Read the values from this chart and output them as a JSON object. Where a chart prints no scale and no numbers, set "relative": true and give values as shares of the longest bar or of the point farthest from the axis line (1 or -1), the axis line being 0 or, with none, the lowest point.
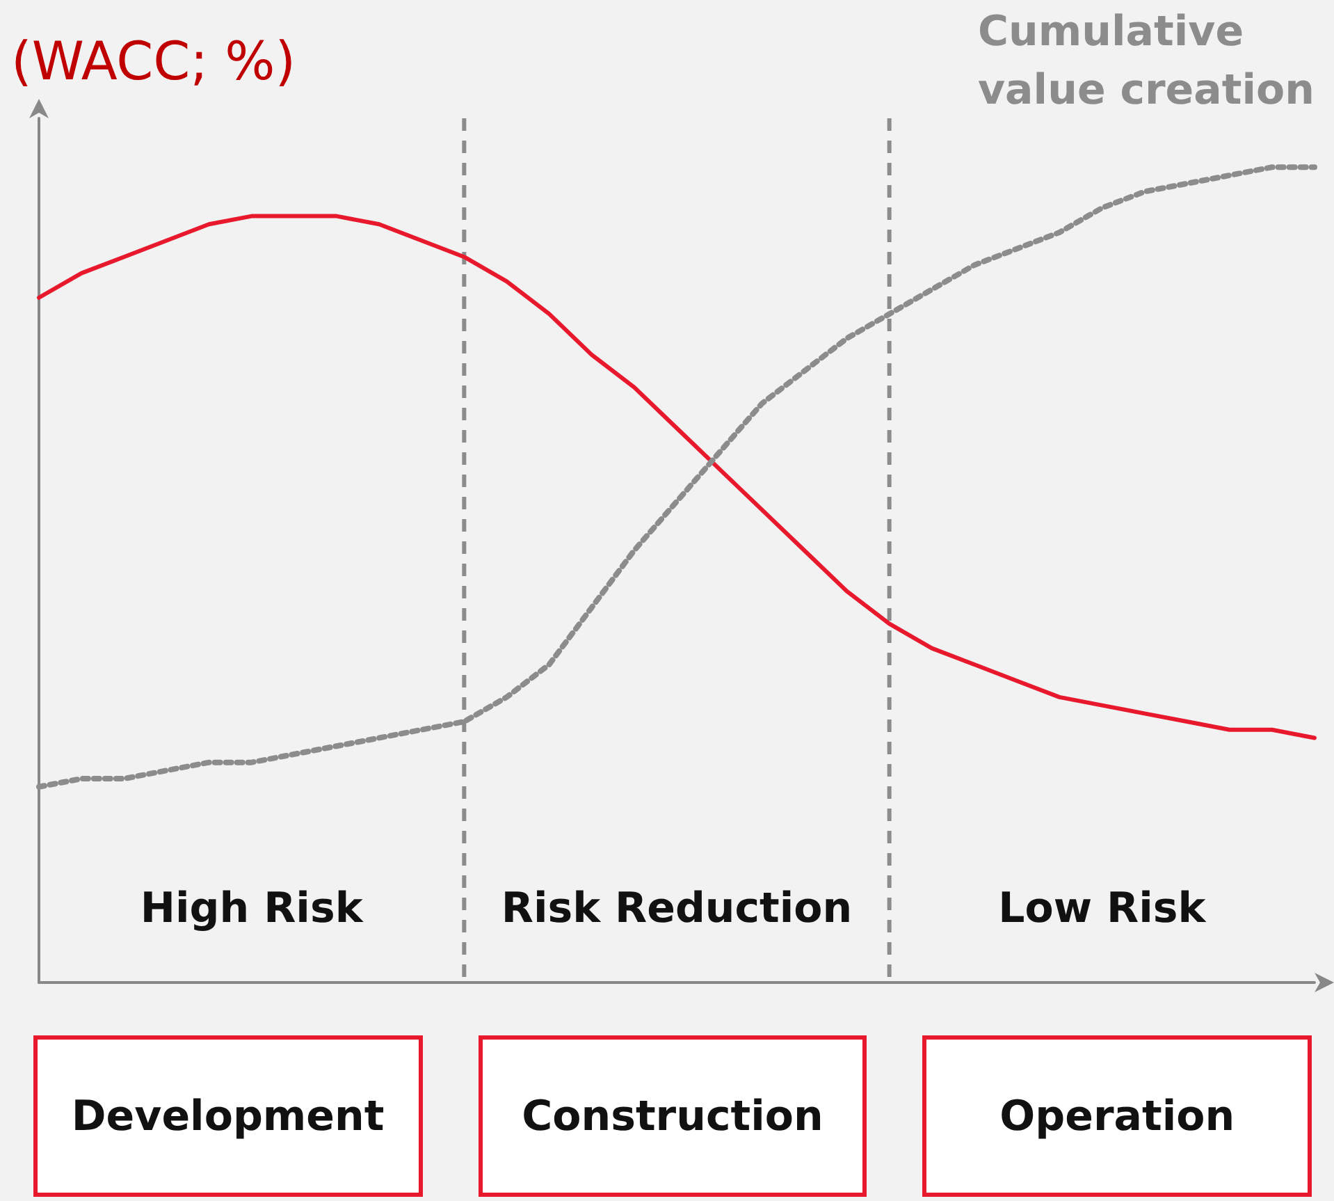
{
  "chart_data": {
    "type": "line",
    "relative": true,
    "ylabel": "(WACC; %)",
    "categories": [
      null,
      null,
      null,
      null,
      null,
      null,
      null,
      null,
      null,
      null,
      null,
      null,
      null,
      null,
      null,
      null,
      null,
      null,
      null,
      null,
      null,
      null,
      null,
      null,
      null,
      null,
      null,
      null,
      null,
      null,
      null
    ],
    "grid": false,
    "legend": false,
    "marker": "none",
    "series": [
      {
        "color": "#e8192c",
        "line_style": "solid",
        "values": [
          0.84,
          0.87,
          0.89,
          0.91,
          0.93,
          0.94,
          0.94,
          0.94,
          0.93,
          0.91,
          0.89,
          0.86,
          0.82,
          0.77,
          0.73,
          0.68,
          0.63,
          0.58,
          0.53,
          0.48,
          0.44,
          0.41,
          0.39,
          0.37,
          0.35,
          0.34,
          0.33,
          0.32,
          0.31,
          0.31,
          0.3
        ]
      },
      {
        "name": "Cumulative value creation",
        "color": "#8c8c8c",
        "line_style": "dotted",
        "values": [
          0.24,
          0.25,
          0.25,
          0.26,
          0.27,
          0.27,
          0.28,
          0.29,
          0.3,
          0.31,
          0.32,
          0.35,
          0.39,
          0.46,
          0.53,
          0.59,
          0.65,
          0.71,
          0.75,
          0.79,
          0.82,
          0.85,
          0.88,
          0.9,
          0.92,
          0.95,
          0.97,
          0.98,
          0.99,
          1,
          1
        ]
      }
    ],
    "annotations": [
      "High Risk",
      "Risk Reduction",
      "Low Risk",
      "Development",
      "Construction",
      "Operation"
    ]
  }
}
